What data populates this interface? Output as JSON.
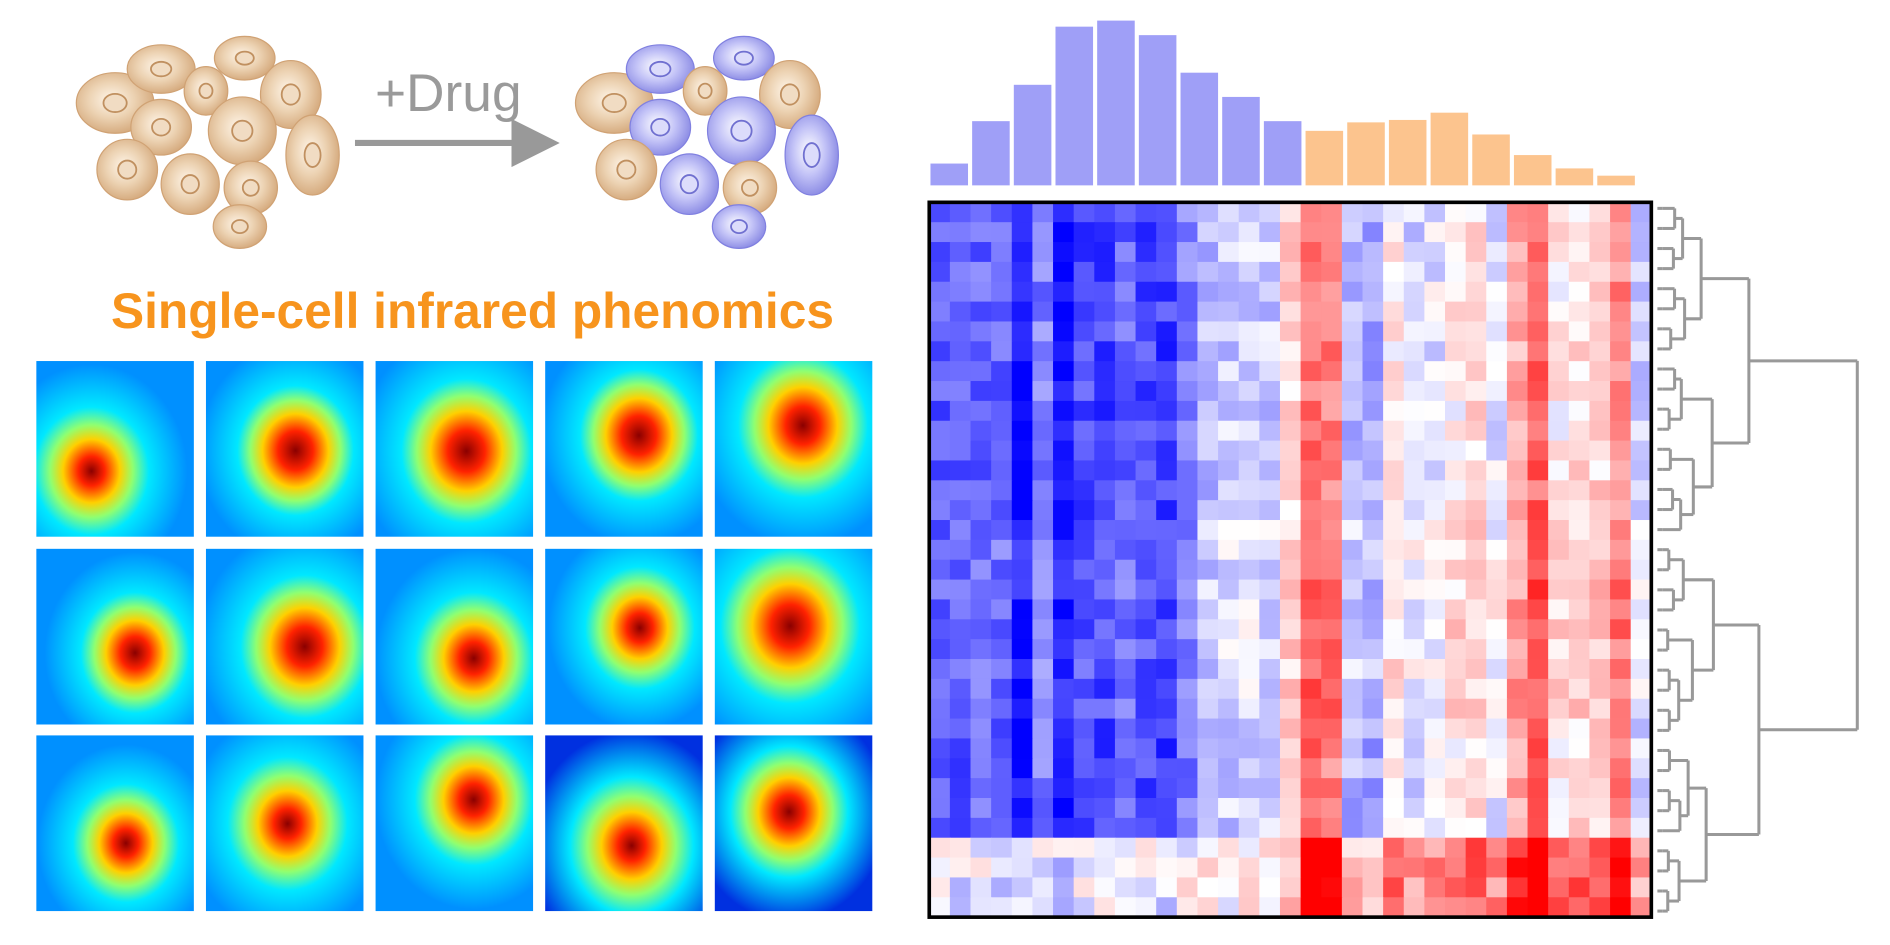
{
  "drug_label": "+Drug",
  "title": "Single-cell infrared phenomics"
}
